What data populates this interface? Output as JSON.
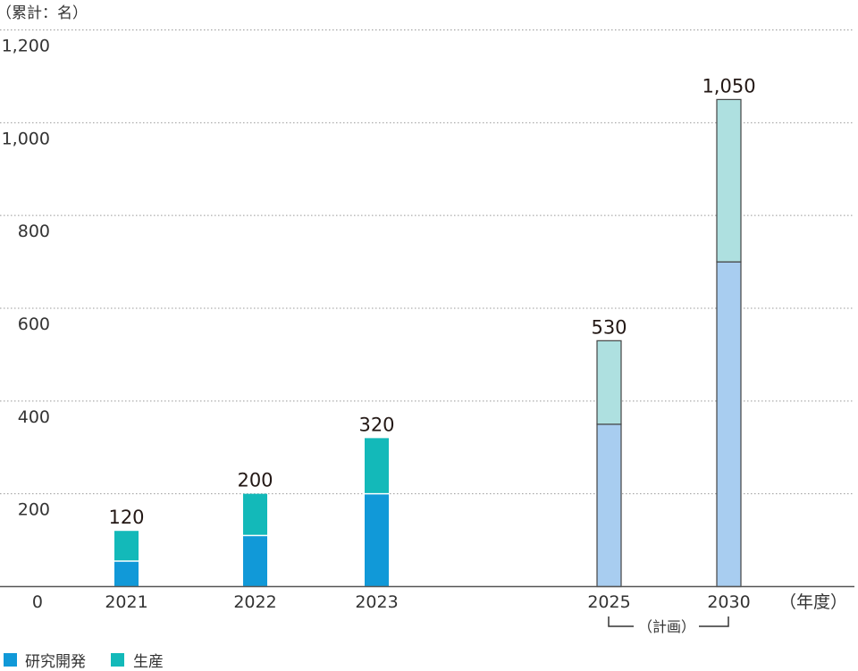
{
  "chart_data": {
    "type": "bar",
    "stacked": true,
    "ylabel": "（累計：名）",
    "xlabel": "（年度）",
    "ylim": [
      0,
      1200
    ],
    "yticks": [
      "0",
      "200",
      "400",
      "600",
      "800",
      "1,000",
      "1,200"
    ],
    "ytick_values": [
      0,
      200,
      400,
      600,
      800,
      1000,
      1200
    ],
    "categories": [
      "2021",
      "2022",
      "2023",
      "2025",
      "2030"
    ],
    "series": [
      {
        "name": "研究開発",
        "values": [
          55,
          110,
          200,
          350,
          700
        ]
      },
      {
        "name": "生産",
        "values": [
          65,
          90,
          120,
          180,
          350
        ]
      }
    ],
    "totals": [
      "120",
      "200",
      "320",
      "530",
      "1,050"
    ],
    "planned": [
      false,
      false,
      false,
      true,
      true
    ],
    "plan_label": "（計画）",
    "grid": true,
    "legend_position": "bottom-left",
    "colors": {
      "actual": [
        "#1199d8",
        "#13b9b9"
      ],
      "planned": [
        "#a8cdf0",
        "#aee0e0"
      ],
      "grid": "#999999",
      "axis": "#555555"
    }
  }
}
